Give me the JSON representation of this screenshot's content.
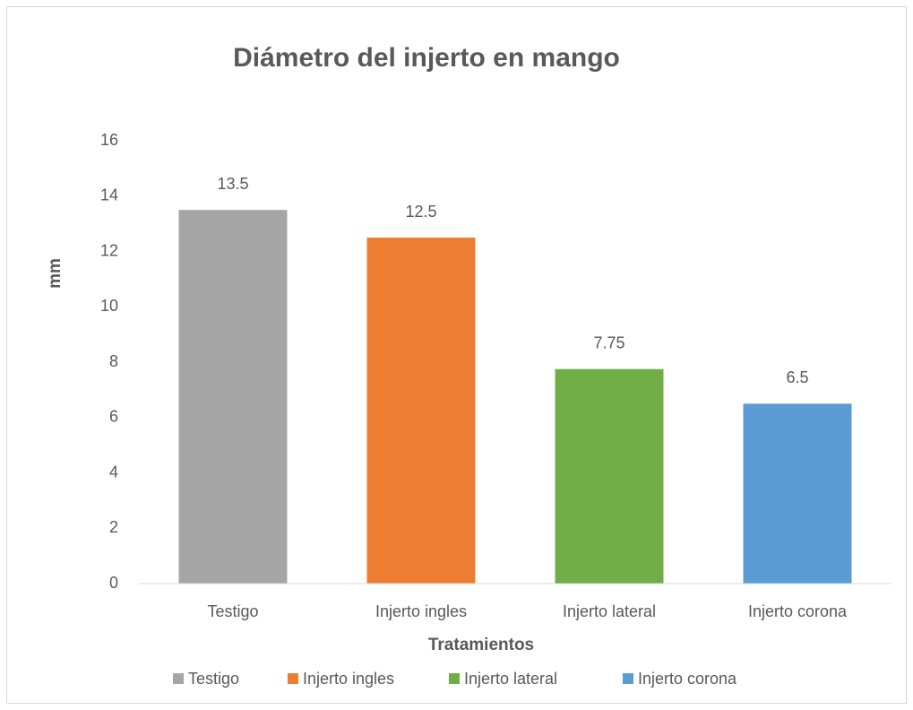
{
  "chart_data": {
    "type": "bar",
    "title": "Diámetro del injerto en mango",
    "categories": [
      "Testigo",
      "Injerto ingles",
      "Injerto lateral",
      "Injerto corona"
    ],
    "values": [
      13.5,
      12.5,
      7.75,
      6.5
    ],
    "colors": [
      "#a5a5a5",
      "#ed7d31",
      "#70ad47",
      "#5b9bd5"
    ],
    "xlabel": "Tratamientos",
    "ylabel": "mm",
    "ylim": [
      0,
      16
    ],
    "yticks": [
      0,
      2,
      4,
      6,
      8,
      10,
      12,
      14,
      16
    ],
    "grid": false,
    "legend": "bottom"
  }
}
